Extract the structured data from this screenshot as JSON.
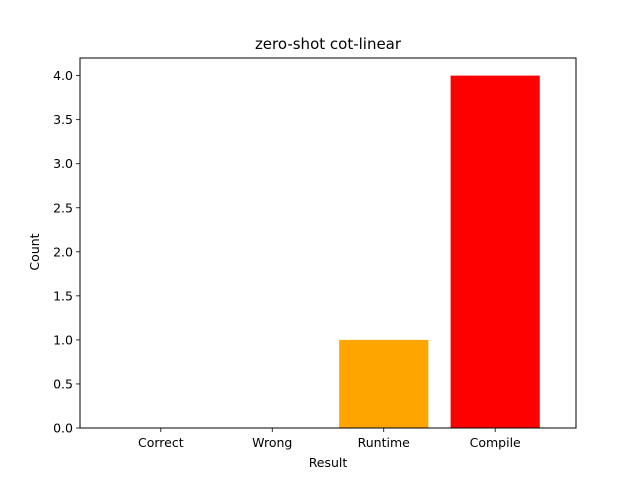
{
  "chart_data": {
    "type": "bar",
    "title": "zero-shot cot-linear",
    "xlabel": "Result",
    "ylabel": "Count",
    "categories": [
      "Correct",
      "Wrong",
      "Runtime",
      "Compile"
    ],
    "values": [
      0,
      0,
      1,
      4
    ],
    "colors": [
      "#008000",
      "#0000ff",
      "#ffa500",
      "#ff0000"
    ],
    "ylim": [
      0,
      4.2
    ],
    "yticks": [
      "0.0",
      "0.5",
      "1.0",
      "1.5",
      "2.0",
      "2.5",
      "3.0",
      "3.5",
      "4.0"
    ],
    "grid": false,
    "legend": "none"
  }
}
